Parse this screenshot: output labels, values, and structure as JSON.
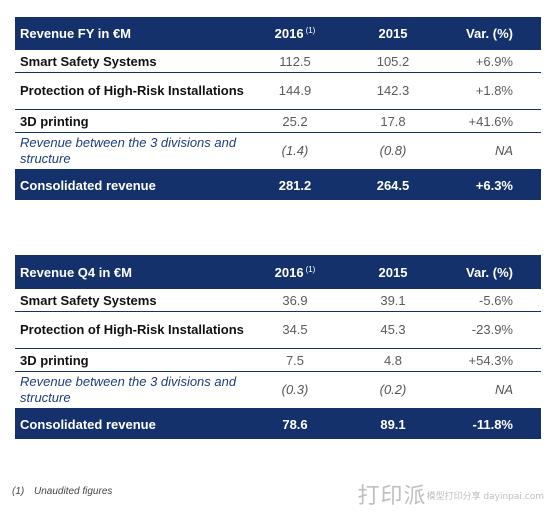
{
  "fy_table": {
    "header": {
      "label": "Revenue FY in €M",
      "col1": "2016",
      "col1_note": "(1)",
      "col2": "2015",
      "col3": "Var. (%)"
    },
    "rows": [
      {
        "label": "Smart Safety Systems",
        "v1": "112.5",
        "v2": "105.2",
        "var": "+6.9%"
      },
      {
        "label": "Protection of High-Risk Installations",
        "v1": "144.9",
        "v2": "142.3",
        "var": "+1.8%"
      },
      {
        "label": "3D printing",
        "v1": "25.2",
        "v2": "17.8",
        "var": "+41.6%"
      },
      {
        "label": "Revenue between the 3 divisions and structure",
        "v1": "(1.4)",
        "v2": "(0.8)",
        "var": "NA"
      }
    ],
    "total": {
      "label": "Consolidated revenue",
      "v1": "281.2",
      "v2": "264.5",
      "var": "+6.3%"
    }
  },
  "q4_table": {
    "header": {
      "label": "Revenue Q4 in €M",
      "col1": "2016",
      "col1_note": "(1)",
      "col2": "2015",
      "col3": "Var. (%)"
    },
    "rows": [
      {
        "label": "Smart Safety Systems",
        "v1": "36.9",
        "v2": "39.1",
        "var": "-5.6%"
      },
      {
        "label": "Protection of High-Risk Installations",
        "v1": "34.5",
        "v2": "45.3",
        "var": "-23.9%"
      },
      {
        "label": "3D printing",
        "v1": "7.5",
        "v2": "4.8",
        "var": "+54.3%"
      },
      {
        "label": "Revenue between the 3 divisions and structure",
        "v1": "(0.3)",
        "v2": "(0.2)",
        "var": "NA"
      }
    ],
    "total": {
      "label": "Consolidated revenue",
      "v1": "78.6",
      "v2": "89.1",
      "var": "-11.8%"
    }
  },
  "footnote": {
    "mark": "(1)",
    "text": "Unaudited figures"
  },
  "watermark": {
    "text": "打印派",
    "sub": "模型打印分享 dayinpai.com"
  },
  "colors": {
    "header_bg": "#15316b",
    "rule": "#15316b",
    "muted_number": "#5b5b5b"
  }
}
